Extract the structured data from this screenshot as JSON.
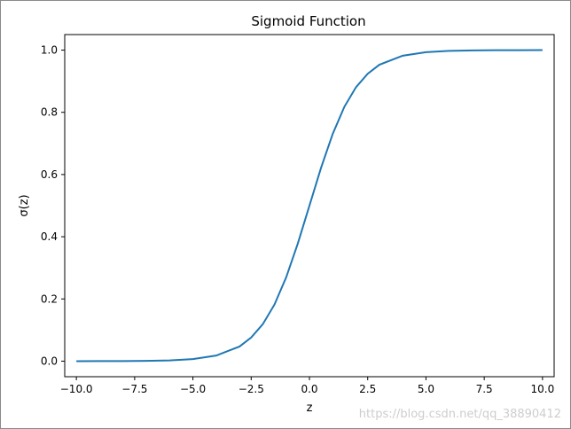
{
  "chart_data": {
    "type": "line",
    "title": "Sigmoid Function",
    "xlabel": "z",
    "ylabel": "σ(z)",
    "xlim": [
      -10.5,
      10.5
    ],
    "ylim": [
      -0.05,
      1.05
    ],
    "x_ticks": [
      "−10.0",
      "−7.5",
      "−5.0",
      "−2.5",
      "0.0",
      "2.5",
      "5.0",
      "7.5",
      "10.0"
    ],
    "y_ticks": [
      "0.0",
      "0.2",
      "0.4",
      "0.6",
      "0.8",
      "1.0"
    ],
    "grid": false,
    "legend": "none",
    "series": [
      {
        "color": "#1f77b4",
        "x": [
          -10,
          -9,
          -8,
          -7,
          -6,
          -5,
          -4,
          -3,
          -2.5,
          -2,
          -1.5,
          -1,
          -0.5,
          0,
          0.5,
          1,
          1.5,
          2,
          2.5,
          3,
          4,
          5,
          6,
          7,
          8,
          9,
          10
        ],
        "y": [
          5e-05,
          0.00012,
          0.00034,
          0.00091,
          0.00247,
          0.0067,
          0.018,
          0.047,
          0.076,
          0.119,
          0.182,
          0.269,
          0.378,
          0.5,
          0.622,
          0.731,
          0.818,
          0.881,
          0.924,
          0.953,
          0.982,
          0.9933,
          0.9975,
          0.9991,
          0.9997,
          0.9999,
          0.99995
        ]
      }
    ]
  },
  "watermark": "https://blog.csdn.net/qq_38890412"
}
